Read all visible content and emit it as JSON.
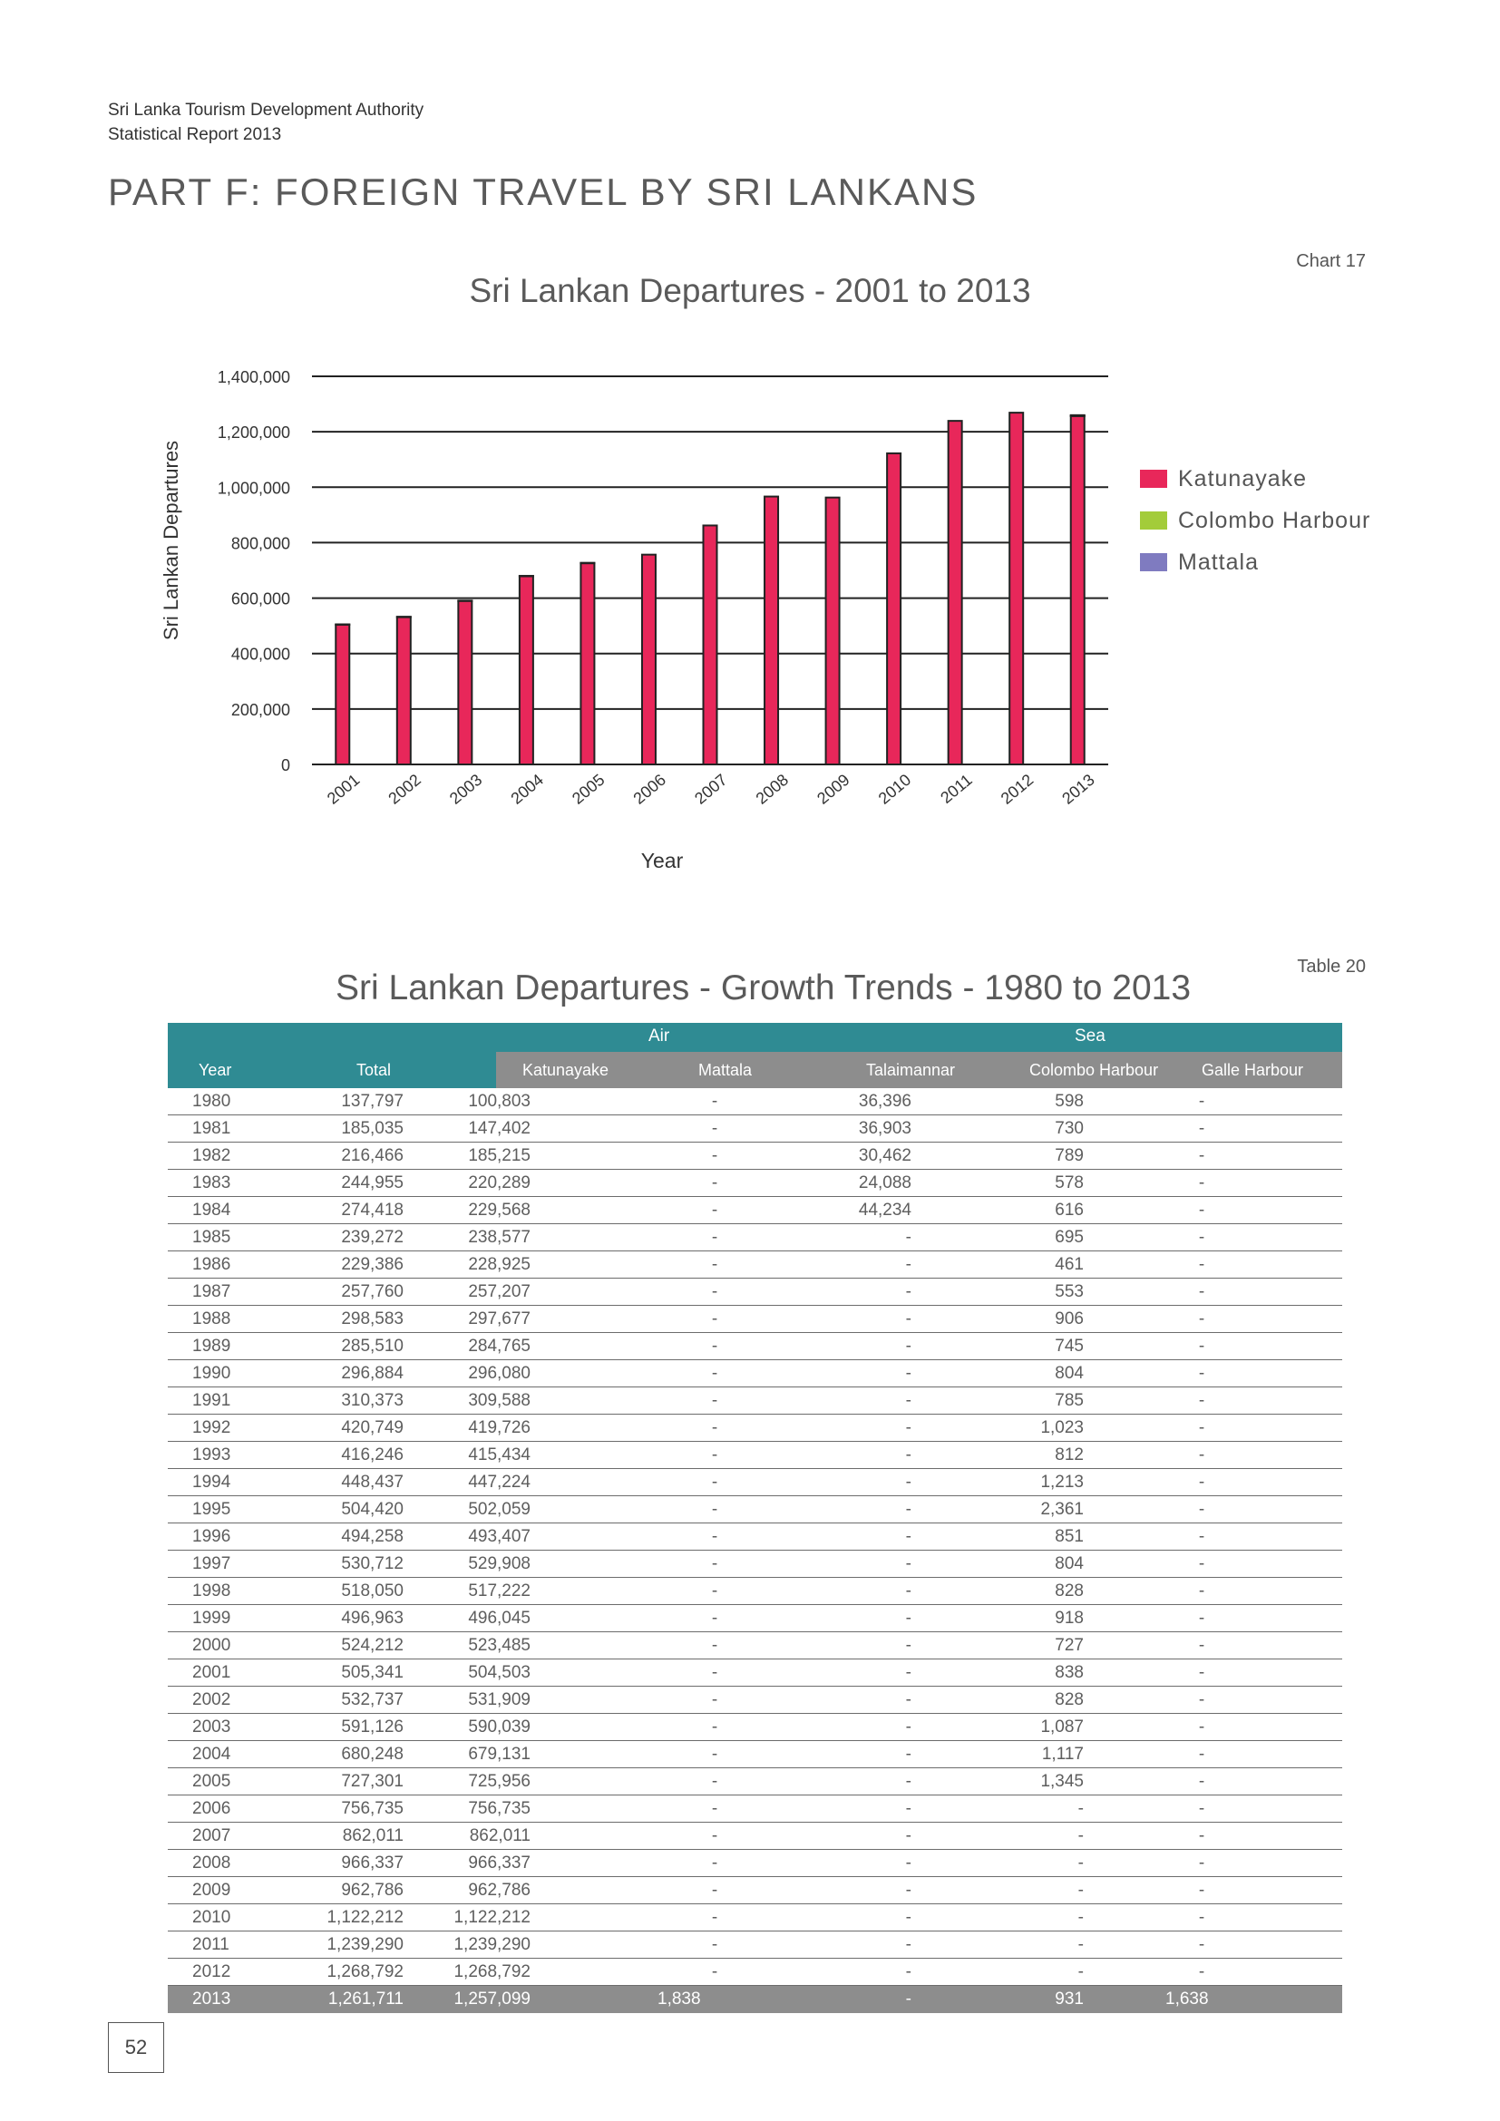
{
  "header": {
    "org_line1": "Sri Lanka Tourism Development Authority",
    "org_line2": "Statistical Report 2013",
    "part_title": "PART F: FOREIGN TRAVEL BY SRI LANKANS"
  },
  "chart": {
    "label": "Chart 17"
  },
  "chart_data": {
    "type": "bar",
    "title": "Sri Lankan Departures - 2001 to 2013",
    "xlabel": "Year",
    "ylabel": "Sri Lankan Departures",
    "ylim": [
      0,
      1400000
    ],
    "yticks": [
      "0",
      "200,000",
      "400,000",
      "600,000",
      "800,000",
      "1,000,000",
      "1,200,000",
      "1,400,000"
    ],
    "categories": [
      "2001",
      "2002",
      "2003",
      "2004",
      "2005",
      "2006",
      "2007",
      "2008",
      "2009",
      "2010",
      "2011",
      "2012",
      "2013"
    ],
    "series": [
      {
        "name": "Katunayake",
        "color": "#e8275a",
        "values": [
          504503,
          531909,
          590039,
          679131,
          725956,
          756735,
          862011,
          966337,
          962786,
          1122212,
          1239290,
          1268792,
          1257099
        ]
      },
      {
        "name": "Colombo Harbour",
        "color": "#a3cc3a",
        "values": [
          838,
          828,
          1087,
          1117,
          1345,
          0,
          0,
          0,
          0,
          0,
          0,
          0,
          931
        ]
      },
      {
        "name": "Mattala",
        "color": "#7f7bc0",
        "values": [
          0,
          0,
          0,
          0,
          0,
          0,
          0,
          0,
          0,
          0,
          0,
          0,
          1838
        ]
      }
    ],
    "grid": true,
    "legend_position": "right"
  },
  "table": {
    "label": "Table 20",
    "title": "Sri Lankan Departures - Growth Trends - 1980 to 2013",
    "group_headers": {
      "air": "Air",
      "sea": "Sea"
    },
    "columns": [
      "Year",
      "Total",
      "Katunayake",
      "Mattala",
      "Talaimannar",
      "Colombo Harbour",
      "Galle Harbour"
    ],
    "rows": [
      [
        "1980",
        "137,797",
        "100,803",
        "-",
        "36,396",
        "598",
        "-"
      ],
      [
        "1981",
        "185,035",
        "147,402",
        "-",
        "36,903",
        "730",
        "-"
      ],
      [
        "1982",
        "216,466",
        "185,215",
        "-",
        "30,462",
        "789",
        "-"
      ],
      [
        "1983",
        "244,955",
        "220,289",
        "-",
        "24,088",
        "578",
        "-"
      ],
      [
        "1984",
        "274,418",
        "229,568",
        "-",
        "44,234",
        "616",
        "-"
      ],
      [
        "1985",
        "239,272",
        "238,577",
        "-",
        "-",
        "695",
        "-"
      ],
      [
        "1986",
        "229,386",
        "228,925",
        "-",
        "-",
        "461",
        "-"
      ],
      [
        "1987",
        "257,760",
        "257,207",
        "-",
        "-",
        "553",
        "-"
      ],
      [
        "1988",
        "298,583",
        "297,677",
        "-",
        "-",
        "906",
        "-"
      ],
      [
        "1989",
        "285,510",
        "284,765",
        "-",
        "-",
        "745",
        "-"
      ],
      [
        "1990",
        "296,884",
        "296,080",
        "-",
        "-",
        "804",
        "-"
      ],
      [
        "1991",
        "310,373",
        "309,588",
        "-",
        "-",
        "785",
        "-"
      ],
      [
        "1992",
        "420,749",
        "419,726",
        "-",
        "-",
        "1,023",
        "-"
      ],
      [
        "1993",
        "416,246",
        "415,434",
        "-",
        "-",
        "812",
        "-"
      ],
      [
        "1994",
        "448,437",
        "447,224",
        "-",
        "-",
        "1,213",
        "-"
      ],
      [
        "1995",
        "504,420",
        "502,059",
        "-",
        "-",
        "2,361",
        "-"
      ],
      [
        "1996",
        "494,258",
        "493,407",
        "-",
        "-",
        "851",
        "-"
      ],
      [
        "1997",
        "530,712",
        "529,908",
        "-",
        "-",
        "804",
        "-"
      ],
      [
        "1998",
        "518,050",
        "517,222",
        "-",
        "-",
        "828",
        "-"
      ],
      [
        "1999",
        "496,963",
        "496,045",
        "-",
        "-",
        "918",
        "-"
      ],
      [
        "2000",
        "524,212",
        "523,485",
        "-",
        "-",
        "727",
        "-"
      ],
      [
        "2001",
        "505,341",
        "504,503",
        "-",
        "-",
        "838",
        "-"
      ],
      [
        "2002",
        "532,737",
        "531,909",
        "-",
        "-",
        "828",
        "-"
      ],
      [
        "2003",
        "591,126",
        "590,039",
        "-",
        "-",
        "1,087",
        "-"
      ],
      [
        "2004",
        "680,248",
        "679,131",
        "-",
        "-",
        "1,117",
        "-"
      ],
      [
        "2005",
        "727,301",
        "725,956",
        "-",
        "-",
        "1,345",
        "-"
      ],
      [
        "2006",
        "756,735",
        "756,735",
        "-",
        "-",
        "-",
        "-"
      ],
      [
        "2007",
        "862,011",
        "862,011",
        "-",
        "-",
        "-",
        "-"
      ],
      [
        "2008",
        "966,337",
        "966,337",
        "-",
        "-",
        "-",
        "-"
      ],
      [
        "2009",
        "962,786",
        "962,786",
        "-",
        "-",
        "-",
        "-"
      ],
      [
        "2010",
        "1,122,212",
        "1,122,212",
        "-",
        "-",
        "-",
        "-"
      ],
      [
        "2011",
        "1,239,290",
        "1,239,290",
        "-",
        "-",
        "-",
        "-"
      ],
      [
        "2012",
        "1,268,792",
        "1,268,792",
        "-",
        "-",
        "-",
        "-"
      ],
      [
        "2013",
        "1,261,711",
        "1,257,099",
        "1,838",
        "-",
        "931",
        "1,638"
      ]
    ]
  },
  "footer": {
    "page_number": "52"
  }
}
